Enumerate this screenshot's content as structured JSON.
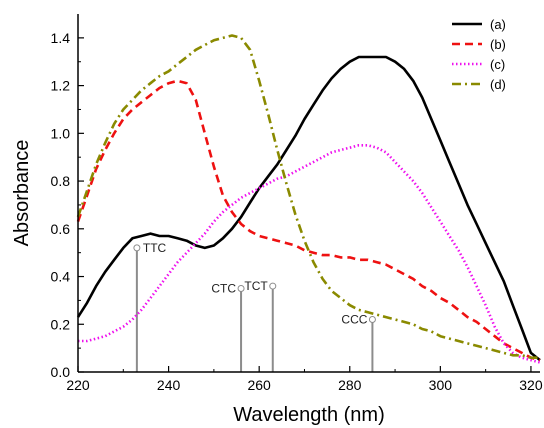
{
  "chart_data": {
    "type": "line",
    "xlabel": "Wavelength  (nm)",
    "ylabel": "Absorbance",
    "xlim": [
      220,
      322
    ],
    "ylim": [
      0.0,
      1.5
    ],
    "xticks": [
      220,
      240,
      260,
      280,
      300,
      320
    ],
    "yticks": [
      0.0,
      0.2,
      0.4,
      0.6,
      0.8,
      1.0,
      1.2,
      1.4
    ],
    "grid": false,
    "legend_position": "top-right",
    "series": [
      {
        "name": "(a)",
        "color": "#000000",
        "dash": "solid",
        "x": [
          220,
          222,
          224,
          226,
          228,
          230,
          232,
          234,
          236,
          238,
          240,
          242,
          244,
          246,
          248,
          250,
          252,
          254,
          256,
          258,
          260,
          262,
          264,
          266,
          268,
          270,
          272,
          274,
          276,
          278,
          280,
          282,
          284,
          286,
          288,
          290,
          292,
          294,
          296,
          298,
          300,
          302,
          304,
          306,
          308,
          310,
          312,
          314,
          316,
          318,
          320,
          322
        ],
        "y": [
          0.23,
          0.29,
          0.36,
          0.42,
          0.47,
          0.52,
          0.56,
          0.57,
          0.58,
          0.57,
          0.57,
          0.56,
          0.55,
          0.53,
          0.52,
          0.53,
          0.56,
          0.6,
          0.65,
          0.71,
          0.77,
          0.82,
          0.87,
          0.93,
          0.99,
          1.06,
          1.12,
          1.18,
          1.23,
          1.27,
          1.3,
          1.32,
          1.32,
          1.32,
          1.32,
          1.3,
          1.27,
          1.22,
          1.15,
          1.06,
          0.97,
          0.88,
          0.79,
          0.7,
          0.62,
          0.54,
          0.46,
          0.38,
          0.28,
          0.18,
          0.08,
          0.05
        ]
      },
      {
        "name": "(b)",
        "color": "#ee1111",
        "dash": "dashed",
        "x": [
          220,
          222,
          224,
          226,
          228,
          230,
          232,
          234,
          236,
          238,
          240,
          242,
          244,
          246,
          248,
          250,
          252,
          254,
          256,
          258,
          260,
          262,
          264,
          266,
          268,
          270,
          272,
          274,
          276,
          278,
          280,
          282,
          284,
          286,
          288,
          290,
          292,
          294,
          296,
          298,
          300,
          302,
          304,
          306,
          308,
          310,
          312,
          314,
          316,
          318,
          320,
          322
        ],
        "y": [
          0.63,
          0.74,
          0.85,
          0.93,
          1.0,
          1.06,
          1.1,
          1.13,
          1.16,
          1.19,
          1.21,
          1.22,
          1.21,
          1.14,
          1.0,
          0.86,
          0.74,
          0.67,
          0.62,
          0.59,
          0.57,
          0.56,
          0.55,
          0.54,
          0.53,
          0.51,
          0.5,
          0.49,
          0.49,
          0.48,
          0.48,
          0.47,
          0.47,
          0.46,
          0.45,
          0.43,
          0.41,
          0.39,
          0.36,
          0.34,
          0.31,
          0.29,
          0.26,
          0.23,
          0.21,
          0.18,
          0.15,
          0.12,
          0.1,
          0.08,
          0.06,
          0.05
        ]
      },
      {
        "name": "(c)",
        "color": "#ee11ee",
        "dash": "dotted",
        "x": [
          220,
          222,
          224,
          226,
          228,
          230,
          232,
          234,
          236,
          238,
          240,
          242,
          244,
          246,
          248,
          250,
          252,
          254,
          256,
          258,
          260,
          262,
          264,
          266,
          268,
          270,
          272,
          274,
          276,
          278,
          280,
          282,
          284,
          286,
          288,
          290,
          292,
          294,
          296,
          298,
          300,
          302,
          304,
          306,
          308,
          310,
          312,
          314,
          316,
          318,
          320,
          322
        ],
        "y": [
          0.13,
          0.13,
          0.14,
          0.15,
          0.17,
          0.19,
          0.22,
          0.26,
          0.31,
          0.36,
          0.41,
          0.46,
          0.5,
          0.54,
          0.58,
          0.63,
          0.67,
          0.7,
          0.73,
          0.75,
          0.77,
          0.79,
          0.81,
          0.82,
          0.84,
          0.86,
          0.88,
          0.9,
          0.92,
          0.93,
          0.94,
          0.95,
          0.95,
          0.94,
          0.92,
          0.88,
          0.84,
          0.8,
          0.75,
          0.69,
          0.63,
          0.57,
          0.51,
          0.44,
          0.36,
          0.28,
          0.19,
          0.12,
          0.08,
          0.06,
          0.05,
          0.04
        ]
      },
      {
        "name": "(d)",
        "color": "#8a8a00",
        "dash": "dashdot",
        "x": [
          220,
          222,
          224,
          226,
          228,
          230,
          232,
          234,
          236,
          238,
          240,
          242,
          244,
          246,
          248,
          250,
          252,
          254,
          256,
          258,
          260,
          262,
          264,
          266,
          268,
          270,
          272,
          274,
          276,
          278,
          280,
          282,
          284,
          286,
          288,
          290,
          292,
          294,
          296,
          298,
          300,
          302,
          304,
          306,
          308,
          310,
          312,
          314,
          316,
          318,
          320,
          322
        ],
        "y": [
          0.65,
          0.76,
          0.87,
          0.96,
          1.04,
          1.1,
          1.14,
          1.18,
          1.21,
          1.24,
          1.26,
          1.29,
          1.32,
          1.35,
          1.37,
          1.39,
          1.4,
          1.41,
          1.4,
          1.35,
          1.22,
          1.08,
          0.93,
          0.79,
          0.66,
          0.55,
          0.46,
          0.39,
          0.34,
          0.31,
          0.28,
          0.26,
          0.25,
          0.24,
          0.23,
          0.22,
          0.21,
          0.2,
          0.18,
          0.17,
          0.15,
          0.14,
          0.13,
          0.12,
          0.11,
          0.1,
          0.09,
          0.08,
          0.07,
          0.07,
          0.06,
          0.06
        ]
      }
    ],
    "annotations": [
      {
        "label": "TTC",
        "x": 233,
        "y": 0.52
      },
      {
        "label": "CTC",
        "x": 256,
        "y": 0.35
      },
      {
        "label": "TCT",
        "x": 263,
        "y": 0.36
      },
      {
        "label": "CCC",
        "x": 285,
        "y": 0.22
      }
    ]
  }
}
